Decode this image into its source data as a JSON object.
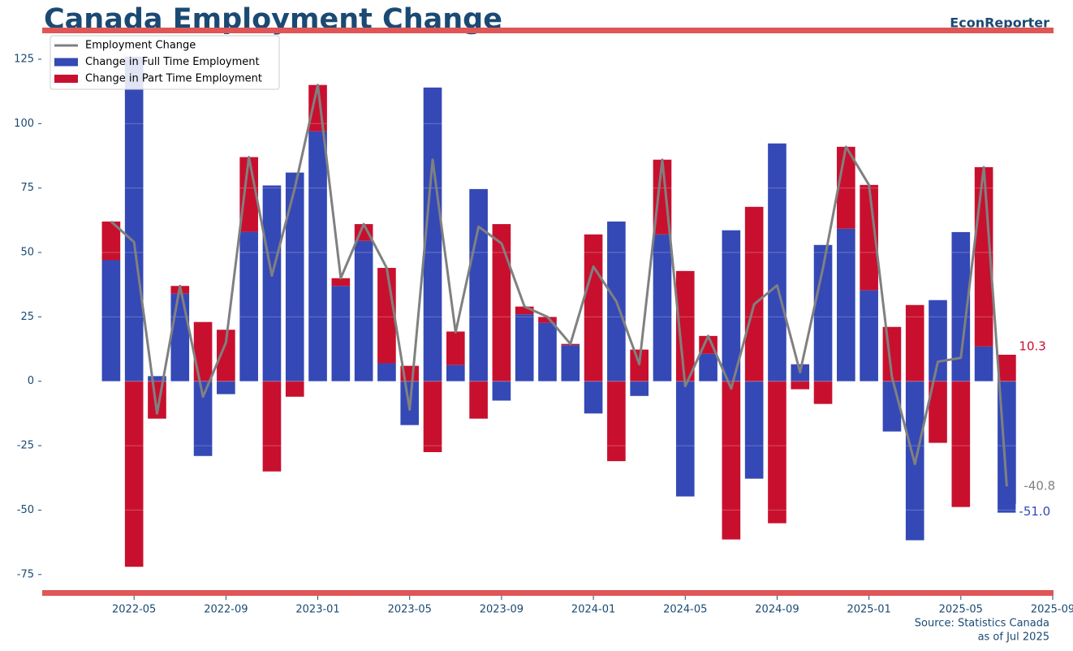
{
  "chart_data": {
    "type": "bar",
    "title": "Canada Employment Change",
    "brand": "EconReporter",
    "source": "Source: Statistics Canada",
    "as_of": "as of Jul 2025",
    "x": [
      "2022-04",
      "2022-05",
      "2022-06",
      "2022-07",
      "2022-08",
      "2022-09",
      "2022-10",
      "2022-11",
      "2022-12",
      "2023-01",
      "2023-02",
      "2023-03",
      "2023-04",
      "2023-05",
      "2023-06",
      "2023-07",
      "2023-08",
      "2023-09",
      "2023-10",
      "2023-11",
      "2023-12",
      "2024-01",
      "2024-02",
      "2024-03",
      "2024-04",
      "2024-05",
      "2024-06",
      "2024-07",
      "2024-08",
      "2024-09",
      "2024-10",
      "2024-11",
      "2024-12",
      "2025-01",
      "2025-02",
      "2025-03",
      "2025-04",
      "2025-05",
      "2025-06",
      "2025-07"
    ],
    "series": [
      {
        "name": "Employment Change",
        "type": "line",
        "color": "#808080",
        "values": [
          62,
          54,
          -12.5,
          37,
          -6,
          15,
          87,
          41,
          75,
          115,
          40,
          61,
          44,
          -11,
          86,
          19,
          60,
          53.5,
          29,
          25,
          14.5,
          44.5,
          31,
          6.6,
          86,
          -1.9,
          17.6,
          -2.8,
          29.9,
          37.2,
          3.5,
          44.1,
          91,
          76.2,
          1.6,
          -32.1,
          7.6,
          9.1,
          83.1,
          -40.8
        ],
        "value_labels": [
          null,
          null,
          null,
          null,
          null,
          null,
          null,
          null,
          null,
          null,
          null,
          null,
          null,
          null,
          null,
          null,
          null,
          null,
          null,
          null,
          null,
          null,
          null,
          null,
          null,
          null,
          null,
          null,
          null,
          null,
          null,
          null,
          null,
          null,
          null,
          null,
          null,
          null,
          null,
          "-40.8"
        ]
      },
      {
        "name": "Change in Full Time Employment",
        "type": "bar",
        "color": "#3449b5",
        "values": [
          47,
          126,
          2,
          34,
          -29,
          -5,
          58,
          76,
          81,
          97,
          37,
          54.5,
          7,
          -17,
          114,
          6.3,
          74.6,
          -7.5,
          26,
          22.7,
          14,
          -12.5,
          62,
          -5.7,
          57,
          -44.7,
          10.7,
          58.6,
          -37.8,
          92.3,
          6.6,
          52.9,
          59.2,
          35.3,
          -19.5,
          -61.7,
          31.5,
          57.9,
          13.5,
          -51.0
        ],
        "value_labels": [
          null,
          null,
          null,
          null,
          null,
          null,
          null,
          null,
          null,
          null,
          null,
          null,
          null,
          null,
          null,
          null,
          null,
          null,
          null,
          null,
          null,
          null,
          null,
          null,
          null,
          null,
          null,
          null,
          null,
          null,
          null,
          null,
          null,
          null,
          null,
          null,
          null,
          null,
          null,
          "-51.0"
        ]
      },
      {
        "name": "Change in Part Time Employment",
        "type": "bar",
        "color": "#c8102e",
        "values": [
          15,
          -72,
          -14.5,
          3,
          23,
          20,
          29,
          -35,
          -6,
          18,
          3,
          6.5,
          37,
          6,
          -27.5,
          13,
          -14.5,
          61,
          3,
          2.3,
          0.5,
          57,
          -31,
          12.3,
          29,
          42.8,
          6.9,
          -61.4,
          67.7,
          -55.1,
          -3.1,
          -8.8,
          31.8,
          40.9,
          21.1,
          29.6,
          -23.9,
          -48.8,
          69.6,
          10.3
        ],
        "value_labels": [
          null,
          null,
          null,
          null,
          null,
          null,
          null,
          null,
          null,
          null,
          null,
          null,
          null,
          null,
          null,
          null,
          null,
          null,
          null,
          null,
          null,
          null,
          null,
          null,
          null,
          null,
          null,
          null,
          null,
          null,
          null,
          null,
          null,
          null,
          null,
          null,
          null,
          null,
          null,
          "10.3"
        ]
      }
    ],
    "xlim": [
      "2022-01",
      "2025-09"
    ],
    "xticks": [
      "2022-05",
      "2022-09",
      "2023-01",
      "2023-05",
      "2023-09",
      "2024-01",
      "2024-05",
      "2024-09",
      "2025-01",
      "2025-05",
      "2025-09"
    ],
    "ylim": [
      -82,
      136
    ],
    "yticks": [
      -75,
      -50,
      -25,
      0,
      25,
      50,
      75,
      100,
      125
    ],
    "grid": true,
    "legend": "upper left"
  }
}
